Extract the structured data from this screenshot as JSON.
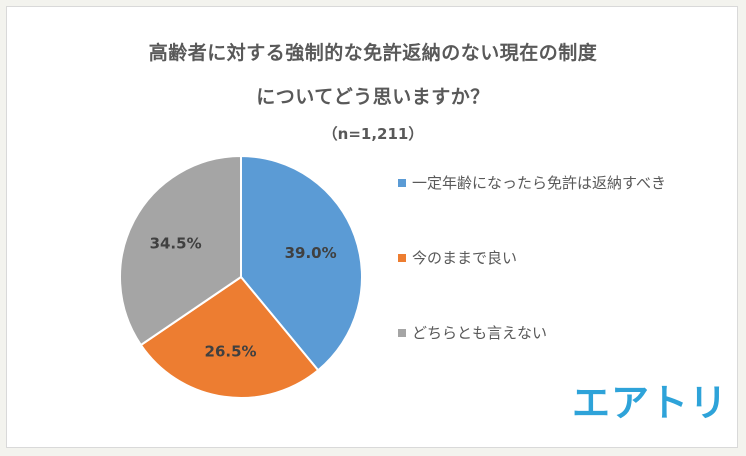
{
  "chart_data": {
    "type": "pie",
    "title_lines": [
      "高齢者に対する強制的な免許返納のない現在の制度",
      "についてどう思いますか？"
    ],
    "subtitle": "（n=1,211）",
    "slices": [
      {
        "label": "一定年齢になったら免許は返納すべき",
        "value": 39.0,
        "display": "39.0%",
        "color": "#5b9bd5"
      },
      {
        "label": "今のままで良い",
        "value": 26.5,
        "display": "26.5%",
        "color": "#ed7d31"
      },
      {
        "label": "どちらとも言えない",
        "value": 34.5,
        "display": "34.5%",
        "color": "#a5a5a5"
      }
    ],
    "legend_placement": "right"
  },
  "logo": {
    "text": "エアトリ",
    "color": "#2ea3d9"
  }
}
